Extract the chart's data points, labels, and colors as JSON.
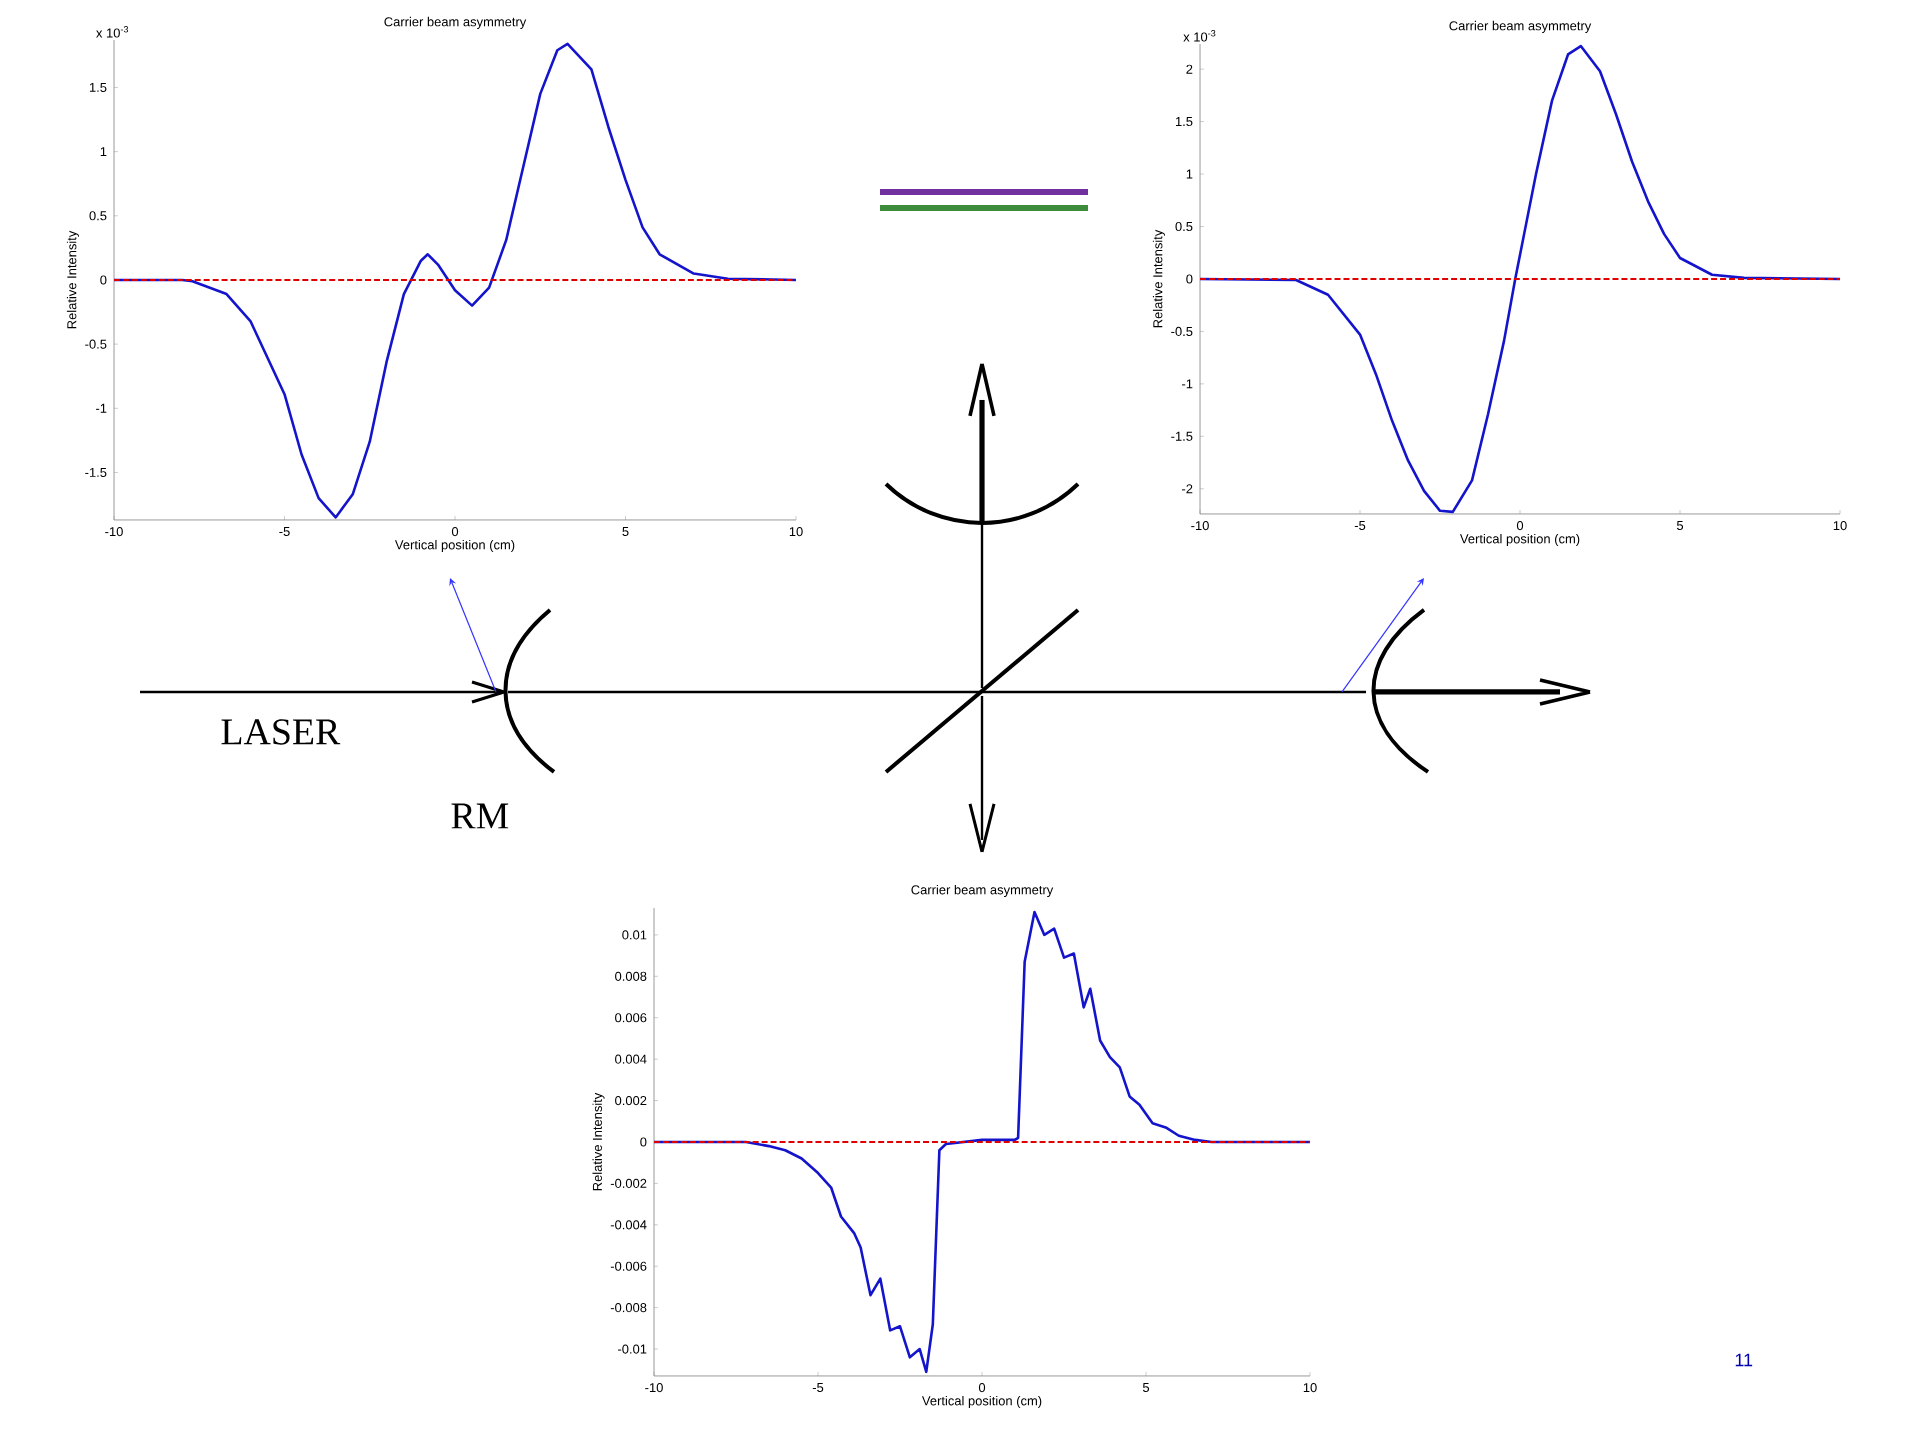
{
  "chart_data": [
    {
      "type": "line",
      "title": "Carrier beam asymmetry",
      "xlabel": "Vertical position (cm)",
      "ylabel": "Relative Intensity",
      "annotations": [
        "x 10$^{-3}$"
      ],
      "xlim": [
        -10,
        10
      ],
      "ylim": [
        -1.87,
        1.87
      ],
      "xticks": [
        -10,
        -5,
        0,
        5,
        10
      ],
      "yticks": [
        -1.5,
        -1,
        -0.5,
        0,
        0.5,
        1,
        1.5
      ],
      "x": [
        -10,
        -8,
        -7.7,
        -6.7,
        -6,
        -5,
        -4.5,
        -4,
        -3.5,
        -3,
        -2.5,
        -2,
        -1.5,
        -1,
        -0.8,
        -0.5,
        0,
        0.5,
        1,
        1.5,
        2,
        2.5,
        3,
        3.3,
        4,
        4.5,
        5,
        5.5,
        6,
        7,
        8,
        10
      ],
      "series": [
        {
          "color": "#1414cc",
          "values": [
            0,
            0,
            -0.01,
            -0.11,
            -0.32,
            -0.89,
            -1.36,
            -1.7,
            -1.85,
            -1.67,
            -1.26,
            -0.63,
            -0.11,
            0.15,
            0.2,
            0.12,
            -0.08,
            -0.2,
            -0.06,
            0.31,
            0.88,
            1.45,
            1.79,
            1.84,
            1.64,
            1.19,
            0.78,
            0.41,
            0.2,
            0.05,
            0.01,
            0
          ]
        }
      ],
      "ref_lines": [
        {
          "axis": "y",
          "value": 0,
          "color": "#e00000",
          "line_style": "dashed"
        }
      ]
    },
    {
      "type": "line",
      "title": "Carrier beam asymmetry",
      "xlabel": "Vertical position (cm)",
      "ylabel": "Relative Intensity",
      "annotations": [
        "x 10$^{-3}$"
      ],
      "xlim": [
        -10,
        10
      ],
      "ylim": [
        -2.24,
        2.24
      ],
      "xticks": [
        -10,
        -5,
        0,
        5,
        10
      ],
      "yticks": [
        -2,
        -1.5,
        -1,
        -0.5,
        0,
        0.5,
        1,
        1.5,
        2
      ],
      "x": [
        -10,
        -7,
        -6,
        -5,
        -4.5,
        -4,
        -3.5,
        -3,
        -2.5,
        -2.1,
        -1.5,
        -1,
        -0.5,
        -0.15,
        0.5,
        1,
        1.5,
        1.9,
        2.5,
        3,
        3.5,
        4,
        4.5,
        5,
        6,
        7,
        10
      ],
      "series": [
        {
          "color": "#1414cc",
          "values": [
            0,
            -0.01,
            -0.15,
            -0.53,
            -0.91,
            -1.35,
            -1.73,
            -2.02,
            -2.21,
            -2.22,
            -1.92,
            -1.29,
            -0.59,
            0,
            1.0,
            1.7,
            2.14,
            2.22,
            1.98,
            1.57,
            1.12,
            0.74,
            0.43,
            0.2,
            0.04,
            0.01,
            0
          ]
        }
      ],
      "ref_lines": [
        {
          "axis": "y",
          "value": 0,
          "color": "#e00000",
          "line_style": "dashed"
        }
      ]
    },
    {
      "type": "line",
      "title": "Carrier beam asymmetry",
      "xlabel": "Vertical position (cm)",
      "ylabel": "Relative Intensity",
      "xlim": [
        -10,
        10
      ],
      "ylim": [
        -0.0113,
        0.0113
      ],
      "xticks": [
        -10,
        -5,
        0,
        5,
        10
      ],
      "yticks": [
        -0.01,
        -0.008,
        -0.006,
        -0.004,
        -0.002,
        0,
        0.002,
        0.004,
        0.006,
        0.008,
        0.01
      ],
      "x": [
        -10,
        -7.2,
        -6.5,
        -6,
        -5.5,
        -5,
        -4.6,
        -4.3,
        -3.9,
        -3.7,
        -3.4,
        -3.1,
        -2.8,
        -2.5,
        -2.2,
        -1.9,
        -1.7,
        -1.5,
        -1.3,
        -1.1,
        0,
        1.0,
        1.1,
        1.3,
        1.6,
        1.9,
        2.2,
        2.5,
        2.8,
        3.1,
        3.3,
        3.6,
        3.9,
        4.2,
        4.5,
        4.8,
        5.2,
        5.6,
        6,
        6.5,
        7,
        10
      ],
      "series": [
        {
          "color": "#1414cc",
          "values": [
            0,
            0,
            -0.0002,
            -0.0004,
            -0.0008,
            -0.0015,
            -0.0022,
            -0.0036,
            -0.0044,
            -0.0051,
            -0.0074,
            -0.0066,
            -0.0091,
            -0.0089,
            -0.0104,
            -0.01,
            -0.0111,
            -0.0088,
            -0.0004,
            -0.0001,
            0.0001,
            0.0001,
            0.0002,
            0.0087,
            0.0111,
            0.01,
            0.0103,
            0.0089,
            0.0091,
            0.0065,
            0.0074,
            0.0049,
            0.0041,
            0.0036,
            0.0022,
            0.0018,
            0.0009,
            0.0007,
            0.0003,
            0.0001,
            0,
            0
          ]
        }
      ],
      "ref_lines": [
        {
          "axis": "y",
          "value": 0,
          "color": "#e00000",
          "line_style": "dashed"
        }
      ]
    },
    {
      "type": "other",
      "annotations": [
        "LASER",
        "RM",
        "11"
      ]
    }
  ]
}
